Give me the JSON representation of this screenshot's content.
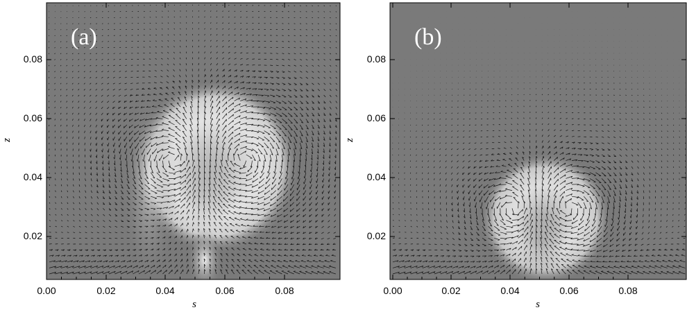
{
  "chart_data": [
    {
      "type": "heatmap",
      "panel_label": "(a)",
      "xlabel": "s",
      "ylabel": "z",
      "xlim": [
        0.0,
        0.1
      ],
      "ylim": [
        0.005,
        0.1
      ],
      "xticks": [
        "0.00",
        "0.02",
        "0.04",
        "0.06",
        "0.08"
      ],
      "yticks": [
        "0.02",
        "0.04",
        "0.06",
        "0.08"
      ],
      "background_color": "#7a7a7a",
      "highlight_color": "#f2f2f2",
      "vectors": "velocity arrows overlay",
      "features": [
        {
          "kind": "ring-vortex",
          "center_s": 0.058,
          "center_z": 0.045,
          "radius": 0.03
        },
        {
          "kind": "stem",
          "s": 0.052,
          "z_from": 0.005,
          "z_to": 0.02
        }
      ]
    },
    {
      "type": "heatmap",
      "panel_label": "(b)",
      "xlabel": "s",
      "ylabel": "z",
      "xlim": [
        0.0,
        0.1
      ],
      "ylim": [
        0.005,
        0.1
      ],
      "xticks": [
        "0.00",
        "0.02",
        "0.04",
        "0.06",
        "0.08"
      ],
      "yticks": [
        "0.02",
        "0.04",
        "0.06",
        "0.08"
      ],
      "background_color": "#7a7a7a",
      "highlight_color": "#eeeeee",
      "vectors": "velocity arrows overlay",
      "features": [
        {
          "kind": "ring-vortex",
          "center_s": 0.053,
          "center_z": 0.027,
          "radius": 0.022
        }
      ]
    }
  ]
}
